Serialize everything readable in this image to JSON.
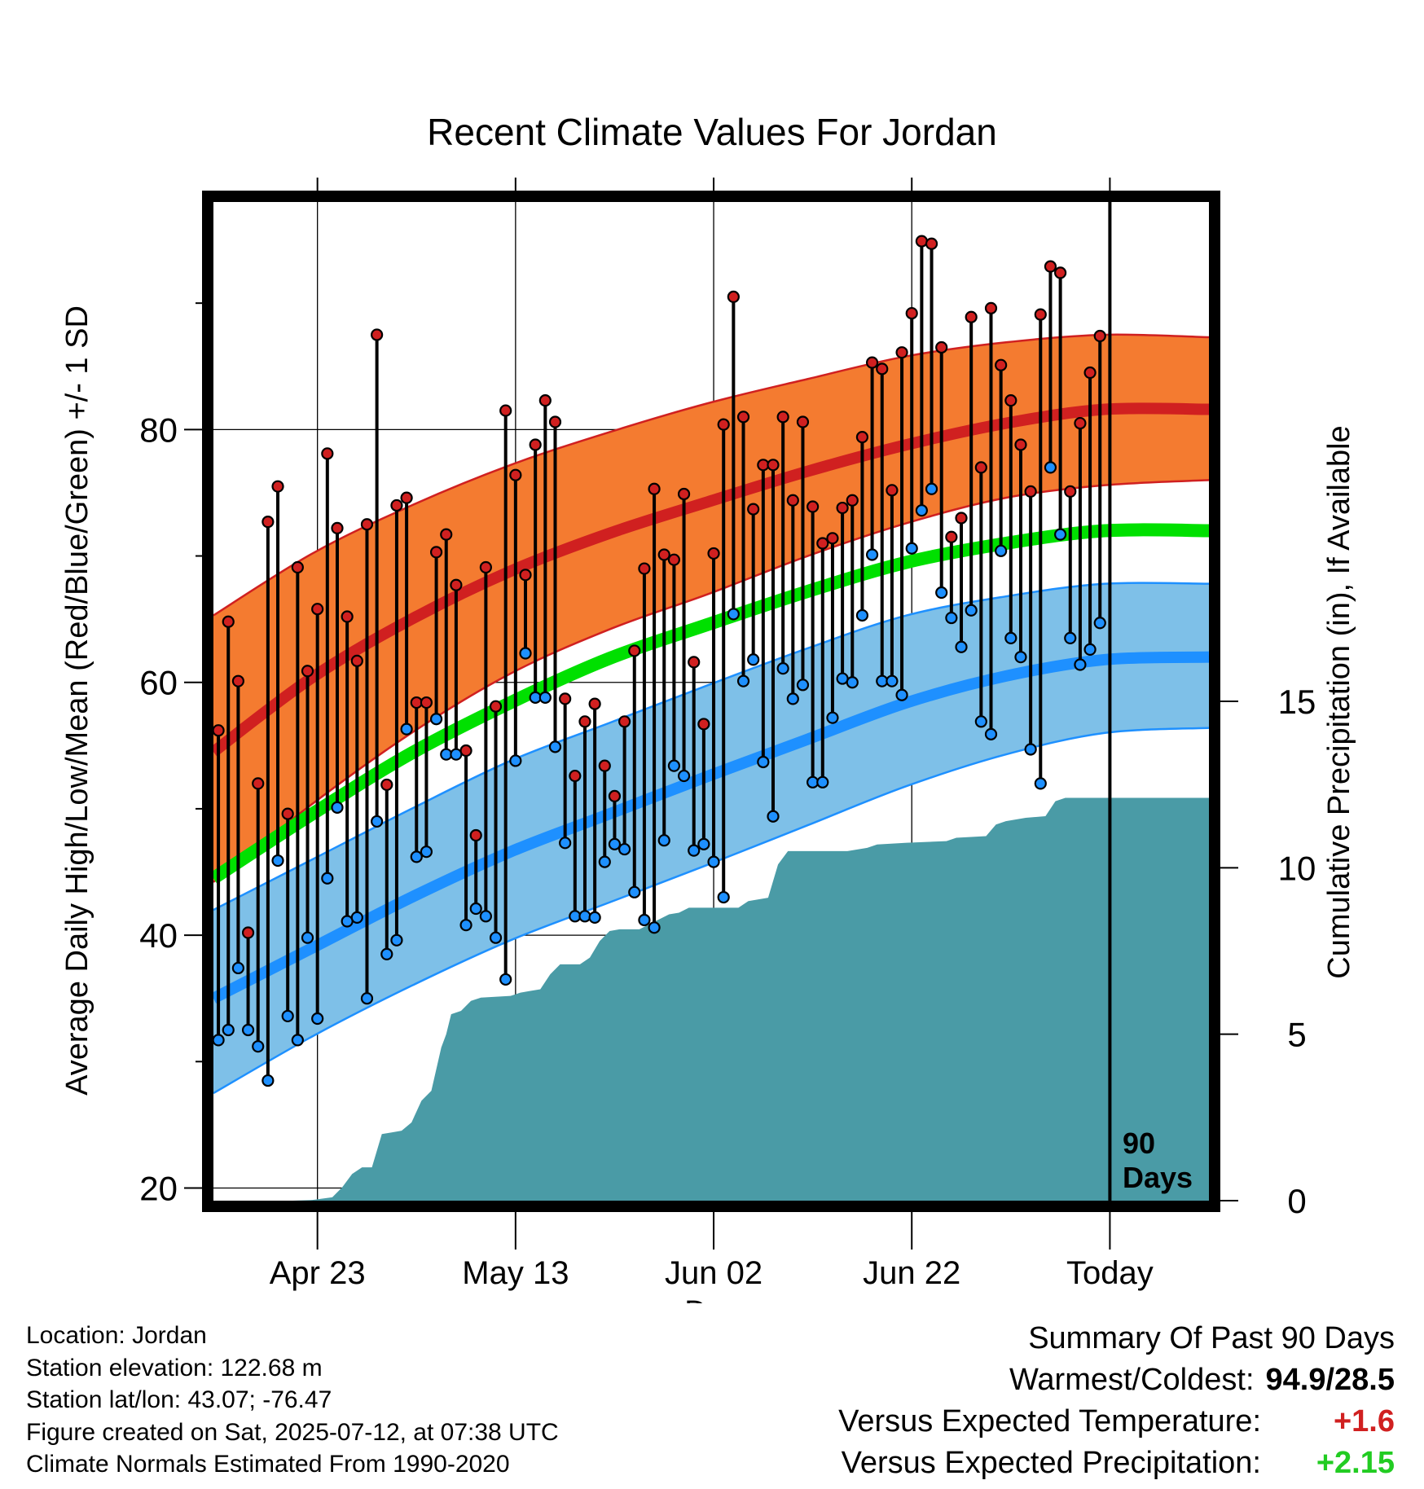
{
  "chart_data": {
    "type": "line",
    "title": "Recent Climate Values For Jordan",
    "xlabel": "Day",
    "ylabel": "Average Daily High/Low/Mean (Red/Blue/Green) +/- 1 SD",
    "ylabel_right": "Cumulative Precipitation (in), If Available",
    "ylim": [
      19,
      98
    ],
    "y_ticks": [
      20,
      40,
      60,
      80
    ],
    "ylim_right": [
      0,
      30
    ],
    "y_right_ticks": [
      0,
      5,
      10,
      15
    ],
    "x_range_days": [
      0,
      100.5
    ],
    "x_ticks": [
      {
        "day": 10.5,
        "label": "Apr 23"
      },
      {
        "day": 30.5,
        "label": "May 13"
      },
      {
        "day": 50.5,
        "label": "Jun 02"
      },
      {
        "day": 70.5,
        "label": "Jun 22"
      },
      {
        "day": 90.5,
        "label": "Today"
      }
    ],
    "today_marker": {
      "day": 90.5,
      "label_line1": "90",
      "label_line2": "Days"
    },
    "grid": true,
    "colors": {
      "high_band": "#f47b30",
      "high_line": "#d02020",
      "mean_line": "#00e000",
      "low_band": "#7ec0e8",
      "low_line": "#1e90ff",
      "precip": "#4a9ba6",
      "high_dot": "#d02020",
      "low_dot": "#1e90ff"
    },
    "normals": {
      "day": [
        0,
        10,
        20,
        30,
        40,
        50,
        60,
        70,
        80,
        90,
        100.5
      ],
      "high_mean": [
        54.5,
        60.4,
        65.0,
        68.8,
        71.8,
        74.3,
        76.7,
        78.8,
        80.5,
        81.6,
        81.6
      ],
      "high_upper": [
        65.3,
        70.2,
        74.0,
        77.2,
        79.8,
        82.1,
        84.0,
        85.8,
        86.9,
        87.5,
        87.3
      ],
      "high_lower": [
        44.2,
        50.4,
        56.0,
        60.7,
        64.2,
        67.0,
        70.0,
        72.6,
        74.6,
        75.6,
        76.0
      ],
      "mean": [
        44.5,
        49.6,
        54.4,
        58.4,
        61.9,
        64.6,
        67.2,
        69.5,
        71.0,
        72.0,
        72.0
      ],
      "low_mean": [
        35.0,
        39.0,
        43.0,
        46.6,
        49.6,
        52.6,
        55.5,
        58.4,
        60.5,
        61.8,
        62.0
      ],
      "low_upper": [
        42.0,
        46.0,
        50.0,
        53.8,
        56.8,
        59.8,
        62.7,
        65.3,
        66.8,
        67.8,
        67.8
      ],
      "low_lower": [
        27.5,
        32.0,
        36.0,
        39.6,
        42.6,
        45.6,
        48.7,
        51.8,
        54.3,
        56.0,
        56.4
      ]
    },
    "daily_highs": [
      56.2,
      64.8,
      60.1,
      40.2,
      52.0,
      72.7,
      75.5,
      49.6,
      69.1,
      60.9,
      65.8,
      78.1,
      72.2,
      65.2,
      61.7,
      72.5,
      87.5,
      51.9,
      74.0,
      74.6,
      58.4,
      58.4,
      70.3,
      71.7,
      67.7,
      54.6,
      47.9,
      69.1,
      58.1,
      81.5,
      76.4,
      68.5,
      78.8,
      82.3,
      80.6,
      58.7,
      52.6,
      56.9,
      58.3,
      53.4,
      51.0,
      56.9,
      62.5,
      69.0,
      75.3,
      70.1,
      69.7,
      74.9,
      61.6,
      56.7,
      70.2,
      80.4,
      90.5,
      81.0,
      73.7,
      77.2,
      77.2,
      81.0,
      74.4,
      80.6,
      73.9,
      71.0,
      71.4,
      73.8,
      74.4,
      79.4,
      85.3,
      84.8,
      75.2,
      86.1,
      89.2,
      94.9,
      94.7,
      86.5,
      71.5,
      73.0,
      88.9,
      77.0,
      89.6,
      85.1,
      82.3,
      78.8,
      75.1,
      89.1,
      92.9,
      92.4,
      75.1,
      80.5,
      84.5,
      87.4
    ],
    "daily_lows": [
      31.7,
      32.5,
      37.4,
      32.5,
      31.2,
      28.5,
      45.9,
      33.6,
      31.7,
      39.8,
      33.4,
      44.5,
      50.1,
      41.1,
      41.4,
      35.0,
      49.0,
      38.5,
      39.6,
      56.3,
      46.2,
      46.6,
      57.1,
      54.3,
      54.3,
      40.8,
      42.1,
      41.5,
      39.8,
      36.5,
      53.8,
      62.3,
      58.8,
      58.8,
      54.9,
      47.3,
      41.5,
      41.5,
      41.4,
      45.8,
      47.2,
      46.8,
      43.4,
      41.2,
      40.6,
      47.5,
      53.4,
      52.6,
      46.7,
      47.2,
      45.8,
      43.0,
      65.4,
      60.1,
      61.8,
      53.7,
      49.4,
      61.1,
      58.7,
      59.8,
      52.1,
      52.1,
      57.2,
      60.3,
      60.0,
      65.3,
      70.1,
      60.1,
      60.1,
      59.0,
      70.6,
      73.6,
      75.3,
      67.1,
      65.1,
      62.8,
      65.7,
      56.9,
      55.9,
      70.4,
      63.5,
      62.0,
      54.7,
      52.0,
      77.0,
      71.7,
      63.5,
      61.4,
      62.6,
      64.7
    ],
    "precip_cumulative": [
      [
        0,
        0
      ],
      [
        8,
        0
      ],
      [
        10,
        0.02
      ],
      [
        12,
        0.1
      ],
      [
        13,
        0.4
      ],
      [
        14,
        0.8
      ],
      [
        15,
        1.0
      ],
      [
        16,
        1.0
      ],
      [
        16.5,
        1.5
      ],
      [
        17,
        2.0
      ],
      [
        18,
        2.05
      ],
      [
        19,
        2.1
      ],
      [
        20,
        2.35
      ],
      [
        21,
        3.0
      ],
      [
        22,
        3.3
      ],
      [
        23,
        4.6
      ],
      [
        23.5,
        5.0
      ],
      [
        24,
        5.6
      ],
      [
        25,
        5.7
      ],
      [
        26,
        6.0
      ],
      [
        27,
        6.1
      ],
      [
        30,
        6.15
      ],
      [
        31,
        6.25
      ],
      [
        32,
        6.3
      ],
      [
        33,
        6.35
      ],
      [
        34,
        6.8
      ],
      [
        35,
        7.1
      ],
      [
        37,
        7.1
      ],
      [
        38,
        7.3
      ],
      [
        39,
        7.8
      ],
      [
        40,
        8.1
      ],
      [
        41,
        8.15
      ],
      [
        43,
        8.15
      ],
      [
        44,
        8.3
      ],
      [
        46,
        8.6
      ],
      [
        47,
        8.65
      ],
      [
        48,
        8.8
      ],
      [
        50,
        8.8
      ],
      [
        53,
        8.8
      ],
      [
        54,
        9.0
      ],
      [
        56,
        9.1
      ],
      [
        57,
        10.1
      ],
      [
        58,
        10.5
      ],
      [
        64,
        10.5
      ],
      [
        66,
        10.6
      ],
      [
        67,
        10.7
      ],
      [
        70,
        10.75
      ],
      [
        74,
        10.8
      ],
      [
        75,
        10.9
      ],
      [
        78,
        10.95
      ],
      [
        79,
        11.3
      ],
      [
        80,
        11.4
      ],
      [
        82,
        11.5
      ],
      [
        84,
        11.55
      ],
      [
        85,
        12.0
      ],
      [
        86,
        12.1
      ],
      [
        90,
        12.1
      ],
      [
        100.5,
        12.1
      ]
    ],
    "annotations": {
      "precip_total_today": 12.1
    }
  },
  "station": {
    "location_line": "Location: Jordan",
    "elevation_line": "Station elevation: 122.68 m",
    "latlon_line": "Station lat/lon: 43.07; -76.47",
    "created_line": "Figure created on Sat, 2025-07-12, at 07:38 UTC",
    "normals_line": "Climate Normals Estimated From 1990-2020"
  },
  "summary": {
    "heading": "Summary Of Past 90 Days",
    "warm_cold_label": "Warmest/Coldest:",
    "warm_cold_value": "94.9/28.5",
    "temp_label": "Versus Expected Temperature:",
    "temp_value": "+1.6",
    "temp_color": "#d02020",
    "precip_label": "Versus Expected Precipitation:",
    "precip_value": "+2.15",
    "precip_color": "#22cc22"
  }
}
